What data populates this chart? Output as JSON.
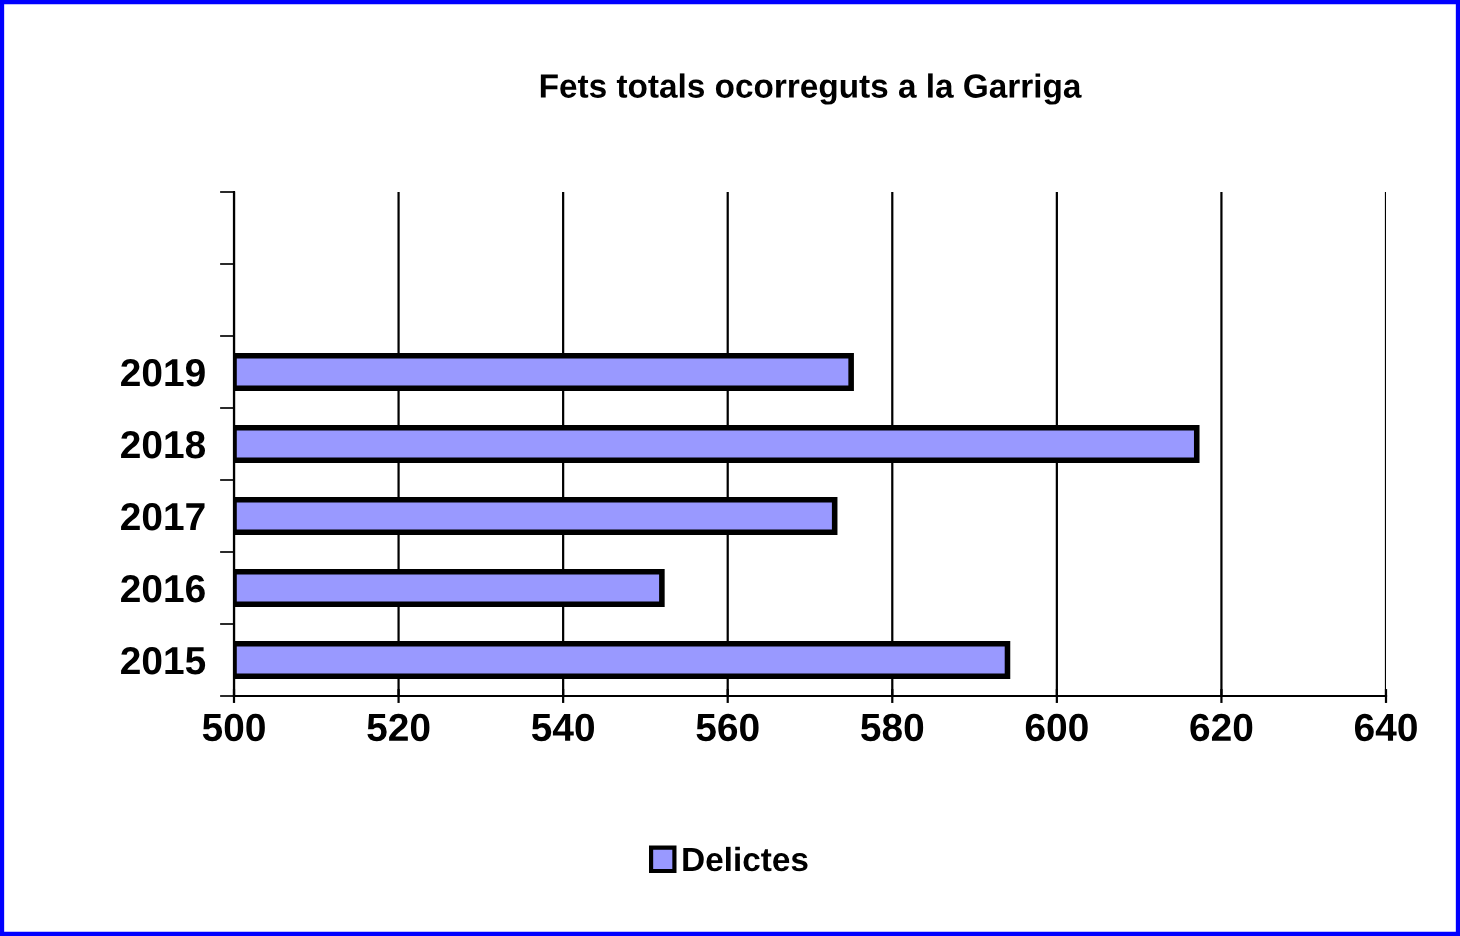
{
  "chart_data": {
    "type": "bar",
    "orientation": "horizontal",
    "title": "Fets totals ocorreguts a la Garriga",
    "categories": [
      null,
      null,
      "2019",
      "2018",
      "2017",
      "2016",
      "2015"
    ],
    "series": [
      {
        "name": "Delictes",
        "color": "#9999ff",
        "values": [
          null,
          null,
          575,
          617,
          573,
          552,
          594
        ]
      }
    ],
    "xlim": [
      500,
      640
    ],
    "xticks": [
      500,
      520,
      540,
      560,
      580,
      600,
      620,
      640
    ],
    "grid": "x",
    "legend": "bottom"
  }
}
